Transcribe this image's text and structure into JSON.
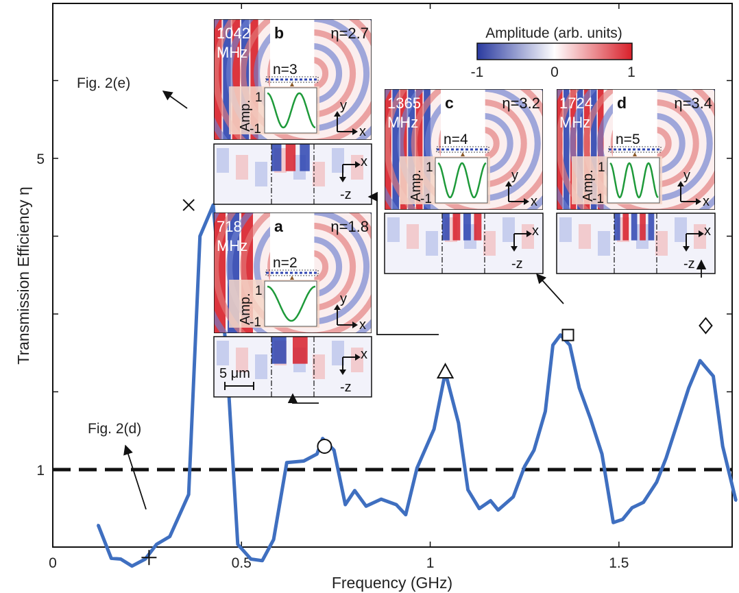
{
  "chart_data": {
    "type": "line",
    "xlabel": "Frequency (GHz)",
    "ylabel": "Transmission Efficiency η",
    "x_ticks": [
      "0",
      "0.5",
      "1",
      "1.5"
    ],
    "x_tick_values": [
      0,
      0.5,
      1,
      1.5
    ],
    "y_ticks": [
      "1",
      "5"
    ],
    "y_tick_values": [
      1,
      5
    ],
    "xlim": [
      0,
      1.8
    ],
    "ylim": [
      0,
      7
    ],
    "reference_line": {
      "y": 1,
      "style": "dashed"
    },
    "series": [
      {
        "color": "#3f6fc0",
        "x": [
          0.12,
          0.155,
          0.18,
          0.21,
          0.245,
          0.275,
          0.31,
          0.36,
          0.39,
          0.425,
          0.46,
          0.49,
          0.525,
          0.555,
          0.585,
          0.62,
          0.665,
          0.7,
          0.715,
          0.745,
          0.775,
          0.8,
          0.83,
          0.87,
          0.91,
          0.935,
          0.965,
          1.01,
          1.04,
          1.075,
          1.1,
          1.13,
          1.16,
          1.18,
          1.22,
          1.25,
          1.275,
          1.305,
          1.325,
          1.345,
          1.37,
          1.395,
          1.425,
          1.455,
          1.485,
          1.51,
          1.535,
          1.565,
          1.6,
          1.625,
          1.655,
          1.685,
          1.715,
          1.75,
          1.775,
          1.81
        ],
        "y": [
          0.29,
          -0.14,
          -0.15,
          -0.24,
          -0.15,
          0.04,
          0.14,
          0.68,
          4.0,
          4.4,
          2.5,
          0.04,
          -0.15,
          -0.17,
          0.1,
          1.09,
          1.11,
          1.2,
          1.4,
          1.25,
          0.55,
          0.73,
          0.53,
          0.62,
          0.55,
          0.42,
          1.02,
          1.52,
          2.25,
          1.6,
          0.74,
          0.5,
          0.6,
          0.48,
          0.65,
          1.04,
          1.25,
          1.75,
          2.6,
          2.73,
          2.6,
          2.05,
          1.65,
          1.2,
          0.32,
          0.36,
          0.51,
          0.58,
          0.84,
          1.15,
          1.6,
          2.05,
          2.4,
          2.2,
          1.3,
          0.6
        ]
      }
    ],
    "point_markers": [
      {
        "symbol": "plus",
        "x": 0.255,
        "y": -0.13
      },
      {
        "symbol": "cross",
        "x": 0.36,
        "y": 4.4
      },
      {
        "symbol": "circle",
        "x": 0.72,
        "y": 1.3
      },
      {
        "symbol": "triangle",
        "x": 1.04,
        "y": 2.25
      },
      {
        "symbol": "square",
        "x": 1.365,
        "y": 2.73
      },
      {
        "symbol": "diamond",
        "x": 1.73,
        "y": 2.85
      }
    ],
    "annotations": {
      "fig_2e": "Fig. 2(e)",
      "fig_2d": "Fig. 2(d)"
    }
  },
  "colorbar": {
    "title": "Amplitude (arb. units)",
    "labels": [
      "-1",
      "0",
      "1"
    ],
    "colors": [
      "#2a3aa0",
      "#ffffff",
      "#d8202a"
    ]
  },
  "insets": {
    "a": {
      "letter": "a",
      "freq": "718",
      "unit": "MHz",
      "eta": "η=1.8",
      "mode": "n=2"
    },
    "b": {
      "letter": "b",
      "freq": "1042",
      "unit": "MHz",
      "eta": "η=2.7",
      "mode": "n=3"
    },
    "c": {
      "letter": "c",
      "freq": "1365",
      "unit": "MHz",
      "eta": "η=3.2",
      "mode": "n=4"
    },
    "d": {
      "letter": "d",
      "freq": "1724",
      "unit": "MHz",
      "eta": "η=3.4",
      "mode": "n=5"
    }
  },
  "inset_labels": {
    "amp": "Amp.",
    "one": "1",
    "minus_one": "-1",
    "x": "x",
    "y": "y",
    "minus_z": "-z",
    "scale_bar": "5 μm"
  }
}
